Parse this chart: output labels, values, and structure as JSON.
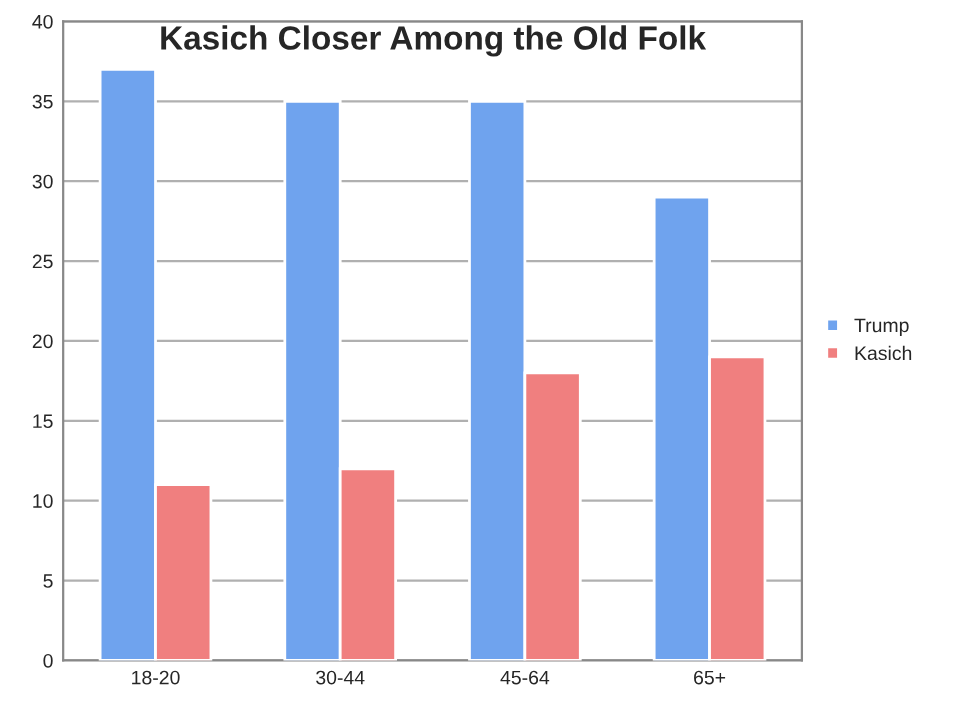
{
  "chart_data": {
    "type": "bar",
    "title": "Kasich Closer Among the Old Folk",
    "categories": [
      "18-20",
      "30-44",
      "45-64",
      "65+"
    ],
    "series": [
      {
        "name": "Trump",
        "color": "#6fa3ee",
        "values": [
          37,
          35,
          35,
          29
        ]
      },
      {
        "name": "Kasich",
        "color": "#f07f7f",
        "values": [
          11,
          12,
          18,
          19
        ]
      }
    ],
    "ylim": [
      0,
      40
    ],
    "yticks": [
      0,
      5,
      10,
      15,
      20,
      25,
      30,
      35,
      40
    ],
    "grid": "y",
    "legend": "right"
  }
}
